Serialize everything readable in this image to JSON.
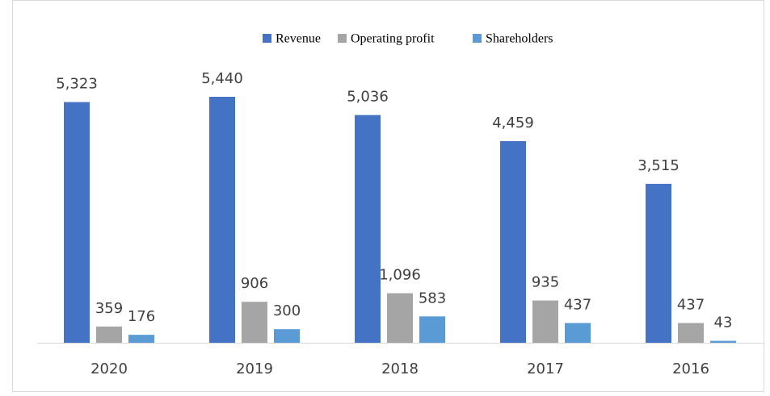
{
  "chart_data": {
    "type": "bar",
    "categories": [
      "2020",
      "2019",
      "2018",
      "2017",
      "2016"
    ],
    "series": [
      {
        "name": "Revenue",
        "color": "#4472c4",
        "values": [
          5323,
          5440,
          5036,
          4459,
          3515
        ],
        "value_labels": [
          "5,323",
          "5,440",
          "5,036",
          "4,459",
          "3,515"
        ]
      },
      {
        "name": "Operating profit",
        "color": "#a5a5a5",
        "values": [
          359,
          906,
          1096,
          935,
          437
        ],
        "value_labels": [
          "359",
          "906",
          "1,096",
          "935",
          "437"
        ]
      },
      {
        "name": "Shareholders",
        "color": "#5b9bd5",
        "values": [
          176,
          300,
          583,
          437,
          43
        ],
        "value_labels": [
          "176",
          "300",
          "583",
          "437",
          "43"
        ]
      }
    ],
    "legend": "top",
    "grid": false
  }
}
